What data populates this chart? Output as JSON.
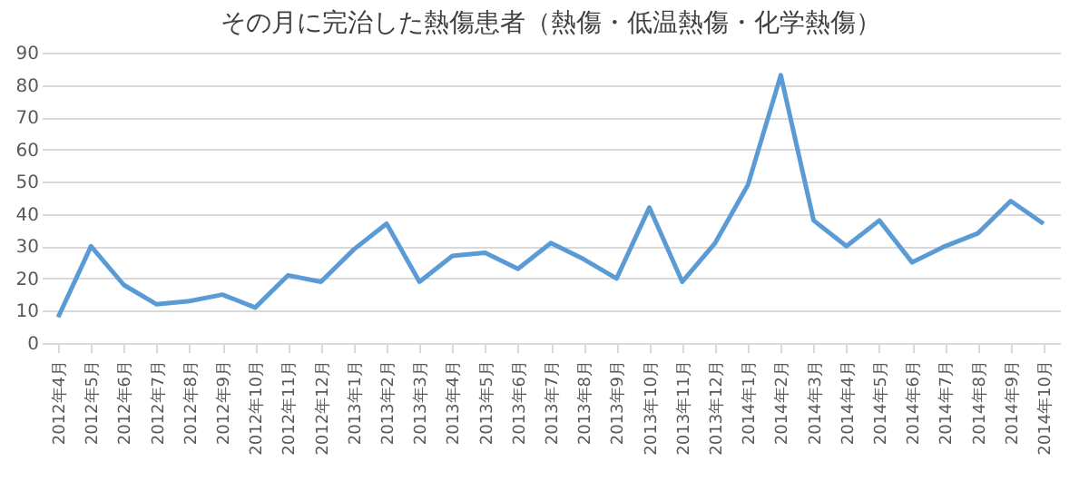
{
  "chart_data": {
    "type": "line",
    "title": "その月に完治した熱傷患者（熱傷・低温熱傷・化学熱傷）",
    "categories": [
      "2012年4月",
      "2012年5月",
      "2012年6月",
      "2012年7月",
      "2012年8月",
      "2012年9月",
      "2012年10月",
      "2012年11月",
      "2012年12月",
      "2013年1月",
      "2013年2月",
      "2013年3月",
      "2013年4月",
      "2013年5月",
      "2013年6月",
      "2013年7月",
      "2013年8月",
      "2013年9月",
      "2013年10月",
      "2013年11月",
      "2013年12月",
      "2014年1月",
      "2014年2月",
      "2014年3月",
      "2014年4月",
      "2014年5月",
      "2014年6月",
      "2014年7月",
      "2014年8月",
      "2014年9月",
      "2014年10月"
    ],
    "series": [
      {
        "color": "#5b9bd5",
        "values": [
          8,
          30,
          18,
          12,
          13,
          15,
          11,
          21,
          19,
          29,
          37,
          19,
          27,
          28,
          23,
          31,
          26,
          20,
          42,
          19,
          31,
          49,
          83,
          38,
          30,
          38,
          25,
          30,
          34,
          44,
          37
        ]
      }
    ],
    "ylim": [
      0,
      90
    ],
    "yticks": [
      0,
      10,
      20,
      30,
      40,
      50,
      60,
      70,
      80,
      90
    ],
    "grid": "y",
    "marker": "none",
    "line_style": "solid"
  }
}
